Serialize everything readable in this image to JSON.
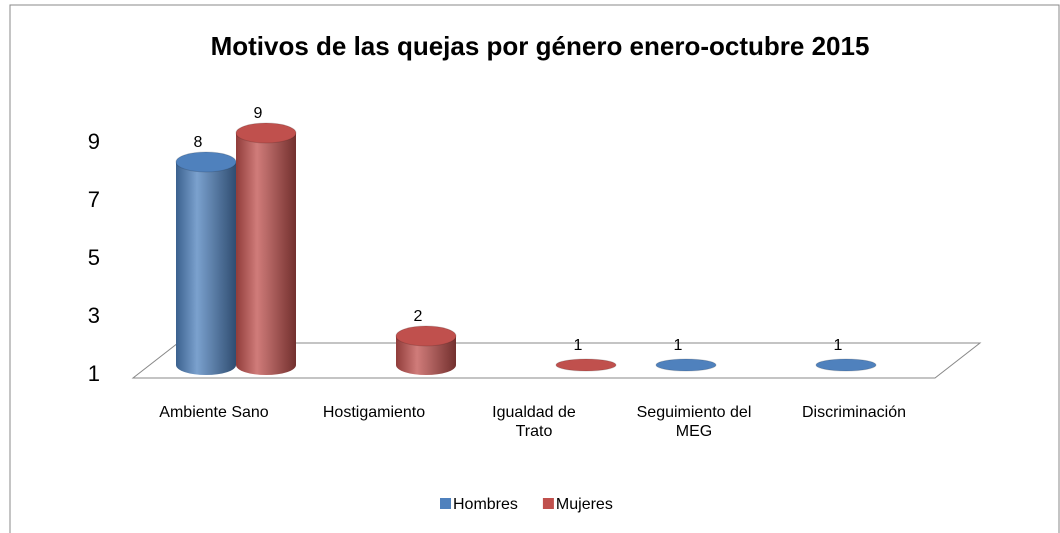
{
  "chart_data": {
    "type": "bar3d",
    "title": "Motivos de las quejas por género enero-octubre 2015",
    "categories": [
      "Ambiente Sano",
      "Hostigamiento",
      "Igualdad de Trato",
      "Seguimiento del MEG",
      "Discriminación"
    ],
    "series": [
      {
        "name": "Hombres",
        "color": "#4f81bd",
        "values": [
          8,
          null,
          null,
          1,
          1
        ]
      },
      {
        "name": "Mujeres",
        "color": "#c0504d",
        "values": [
          9,
          2,
          1,
          null,
          null
        ]
      }
    ],
    "ylim": [
      1,
      9
    ],
    "yticks": [
      1,
      3,
      5,
      7,
      9
    ],
    "legend": "bottom"
  }
}
